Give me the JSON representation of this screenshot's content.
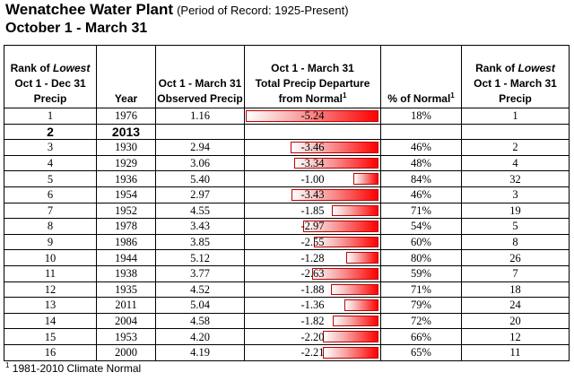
{
  "header": {
    "title": "Wenatchee Water Plant",
    "period": "(Period of Record: 1925-Present)",
    "subtitle": "October 1 - March 31"
  },
  "columns": {
    "rank_lowest_dec_a": "Rank of",
    "rank_lowest_dec_b": "Lowest",
    "rank_lowest_dec_c": "Oct 1 - Dec 31",
    "rank_lowest_dec_d": "Precip",
    "year": "Year",
    "observed_a": "Oct 1 - March 31",
    "observed_b": "Observed Precip",
    "departure_a": "Oct 1 - March 31",
    "departure_b": "Total Precip Departure",
    "departure_c": "from Normal",
    "departure_sup": "1",
    "pct_normal": "% of Normal",
    "pct_sup": "1",
    "rank_lowest_mar_a": "Rank of",
    "rank_lowest_mar_b": "Lowest",
    "rank_lowest_mar_c": "Oct 1 - March 31",
    "rank_lowest_mar_d": "Precip"
  },
  "rows": [
    {
      "rank": "1",
      "year": "1976",
      "observed": "1.16",
      "departure": "-5.24",
      "departure_value": -5.24,
      "pct": "18%",
      "rank_mar": "1"
    },
    {
      "rank": "2",
      "year": "2013",
      "observed": "",
      "departure": "",
      "departure_value": 0,
      "pct": "",
      "rank_mar": "",
      "highlight": true
    },
    {
      "rank": "3",
      "year": "1930",
      "observed": "2.94",
      "departure": "-3.46",
      "departure_value": -3.46,
      "pct": "46%",
      "rank_mar": "2"
    },
    {
      "rank": "4",
      "year": "1929",
      "observed": "3.06",
      "departure": "-3.34",
      "departure_value": -3.34,
      "pct": "48%",
      "rank_mar": "4"
    },
    {
      "rank": "5",
      "year": "1936",
      "observed": "5.40",
      "departure": "-1.00",
      "departure_value": -1.0,
      "pct": "84%",
      "rank_mar": "32"
    },
    {
      "rank": "6",
      "year": "1954",
      "observed": "2.97",
      "departure": "-3.43",
      "departure_value": -3.43,
      "pct": "46%",
      "rank_mar": "3"
    },
    {
      "rank": "7",
      "year": "1952",
      "observed": "4.55",
      "departure": "-1.85",
      "departure_value": -1.85,
      "pct": "71%",
      "rank_mar": "19"
    },
    {
      "rank": "8",
      "year": "1978",
      "observed": "3.43",
      "departure": "-2.97",
      "departure_value": -2.97,
      "pct": "54%",
      "rank_mar": "5"
    },
    {
      "rank": "9",
      "year": "1986",
      "observed": "3.85",
      "departure": "-2.55",
      "departure_value": -2.55,
      "pct": "60%",
      "rank_mar": "8"
    },
    {
      "rank": "10",
      "year": "1944",
      "observed": "5.12",
      "departure": "-1.28",
      "departure_value": -1.28,
      "pct": "80%",
      "rank_mar": "26"
    },
    {
      "rank": "11",
      "year": "1938",
      "observed": "3.77",
      "departure": "-2.63",
      "departure_value": -2.63,
      "pct": "59%",
      "rank_mar": "7"
    },
    {
      "rank": "12",
      "year": "1935",
      "observed": "4.52",
      "departure": "-1.88",
      "departure_value": -1.88,
      "pct": "71%",
      "rank_mar": "18"
    },
    {
      "rank": "13",
      "year": "2011",
      "observed": "5.04",
      "departure": "-1.36",
      "departure_value": -1.36,
      "pct": "79%",
      "rank_mar": "24"
    },
    {
      "rank": "14",
      "year": "2004",
      "observed": "4.58",
      "departure": "-1.82",
      "departure_value": -1.82,
      "pct": "72%",
      "rank_mar": "20"
    },
    {
      "rank": "15",
      "year": "1953",
      "observed": "4.20",
      "departure": "-2.20",
      "departure_value": -2.2,
      "pct": "66%",
      "rank_mar": "12"
    },
    {
      "rank": "16",
      "year": "2000",
      "observed": "4.19",
      "departure": "-2.21",
      "departure_value": -2.21,
      "pct": "65%",
      "rank_mar": "11"
    }
  ],
  "footnote": {
    "sup": "1",
    "text": "1981-2010 Climate Normal"
  },
  "colors": {
    "bar_fill": "#ff0000",
    "bar_border": "#c00000"
  }
}
